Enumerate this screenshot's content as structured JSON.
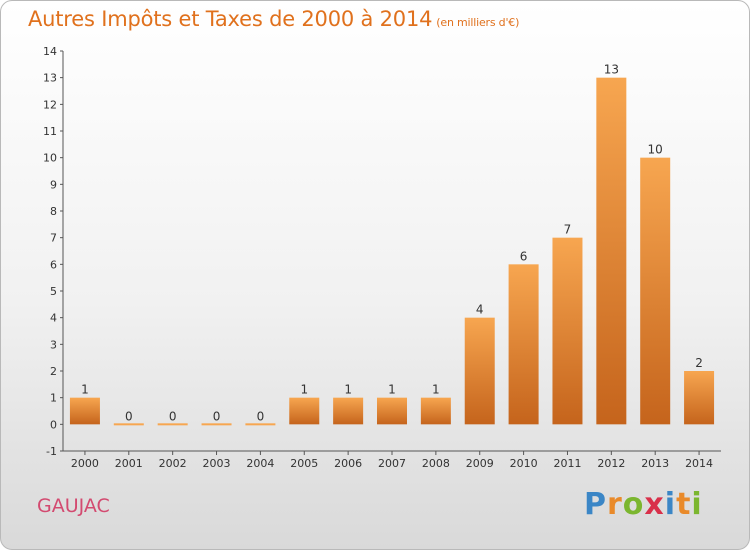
{
  "title": "Autres Impôts et Taxes de 2000 à 2014",
  "unit": "(en milliers d'€)",
  "commune": "GAUJAC",
  "logo": {
    "letters": [
      "P",
      "r",
      "o",
      "x",
      "i",
      "t",
      "i"
    ],
    "colors": [
      "#3b86c6",
      "#e98a2a",
      "#7bb62f",
      "#d9304a",
      "#3b86c6",
      "#e98a2a",
      "#7bb62f"
    ]
  },
  "colors": {
    "bar_light": "#f7a650",
    "bar_dark": "#c5641c",
    "title": "#e0711d",
    "commune": "#d34a70"
  },
  "chart_data": {
    "type": "bar",
    "title": "Autres Impôts et Taxes de 2000 à 2014",
    "ylabel": "",
    "xlabel": "",
    "categories": [
      "2000",
      "2001",
      "2002",
      "2003",
      "2004",
      "2005",
      "2006",
      "2007",
      "2008",
      "2009",
      "2010",
      "2011",
      "2012",
      "2013",
      "2014"
    ],
    "values": [
      1,
      0,
      0,
      0,
      0,
      1,
      1,
      1,
      1,
      4,
      6,
      7,
      13,
      10,
      2
    ],
    "yticks": [
      "-1",
      "0",
      "1",
      "2",
      "3",
      "4",
      "5",
      "6",
      "7",
      "8",
      "9",
      "10",
      "11",
      "12",
      "13",
      "14"
    ],
    "ylim": [
      -1,
      14
    ],
    "grid": false,
    "legend": "none"
  }
}
